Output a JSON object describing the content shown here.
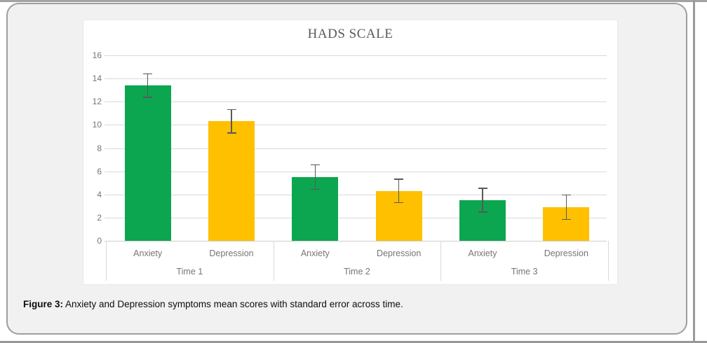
{
  "caption": {
    "prefix": "Figure 3:",
    "text": " Anxiety and Depression symptoms mean scores with standard error across time."
  },
  "chart_data": {
    "type": "bar",
    "title": "HADS SCALE",
    "xlabel": "",
    "ylabel": "",
    "ylim": [
      0,
      16
    ],
    "y_ticks": [
      0,
      2,
      4,
      6,
      8,
      10,
      12,
      14,
      16
    ],
    "grid": true,
    "legend": "none",
    "error_bars": "standard error, cap style",
    "categories_level1": [
      "Anxiety",
      "Depression"
    ],
    "categories_level2": [
      "Time 1",
      "Time 2",
      "Time 3"
    ],
    "groups": [
      {
        "label": "Time 1",
        "bars": [
          {
            "category": "Anxiety",
            "mean": 13.4,
            "se": 1.0
          },
          {
            "category": "Depression",
            "mean": 10.3,
            "se": 1.0
          }
        ]
      },
      {
        "label": "Time 2",
        "bars": [
          {
            "category": "Anxiety",
            "mean": 5.5,
            "se": 1.05
          },
          {
            "category": "Depression",
            "mean": 4.3,
            "se": 1.0
          }
        ]
      },
      {
        "label": "Time 3",
        "bars": [
          {
            "category": "Anxiety",
            "mean": 3.5,
            "se": 1.0
          },
          {
            "category": "Depression",
            "mean": 2.9,
            "se": 1.05
          }
        ]
      }
    ],
    "series_colors": {
      "Anxiety": "#0BA64F",
      "Depression": "#FFC000"
    },
    "error_bar_color": "#595959",
    "gridline_color": "#D9D9D9",
    "baseline_color": "#CFCFCF",
    "axis_text_color": "#757575",
    "title_color": "#595959"
  }
}
